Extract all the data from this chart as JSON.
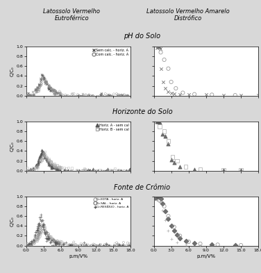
{
  "title_left": "Latossolo Vermelho\nEutroférrico",
  "title_right": "Latossolo Vermelho Amarelo\nDistrófico",
  "row_titles": [
    "pH do Solo",
    "Horizonte do Solo",
    "Fonte de Crômio"
  ],
  "xlabel": "p.m/V%",
  "ylabel": "C/C₀",
  "xlim": [
    0,
    18
  ],
  "xticks": [
    0.0,
    3.0,
    6.0,
    9.0,
    12.0,
    15.0,
    18.0
  ],
  "ylim": [
    0,
    1.0
  ],
  "yticks": [
    0.0,
    0.2,
    0.4,
    0.6,
    0.8,
    1.0
  ],
  "fig_bg": "#d8d8d8",
  "plot_bg": "#ffffff",
  "gray_dark": "#555555",
  "gray_med": "#888888",
  "gray_light": "#aaaaaa",
  "legend_row0": [
    "x Sem calc. - horiz. A",
    "o Com calc. - horiz. A"
  ],
  "legend_row1": [
    "a Horiz. A - sem cal",
    "□ Horiz. B - sem cal"
  ],
  "legend_row2": [
    "o Cr-EDTA - horiz. A",
    "o Cr-SAL - horiz. A",
    "+ Cr-RESÍDUO - horiz. A"
  ]
}
